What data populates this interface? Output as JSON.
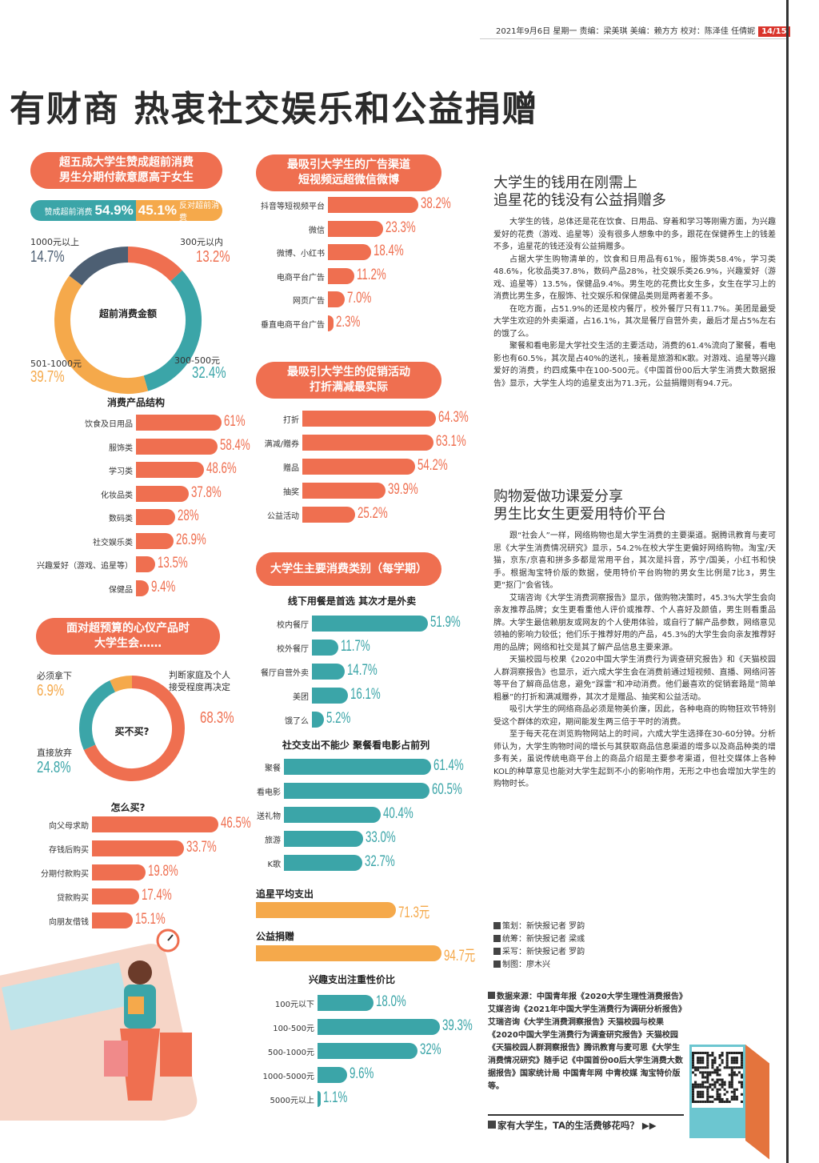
{
  "header": {
    "date_line": "2021年9月6日 星期一  责编：梁美琪  美编：赖方方  校对：陈泽佳 任倩妮",
    "page_number": "14/15"
  },
  "headline": "有财商  热衷社交娱乐和公益捐赠",
  "colors": {
    "coral": "#ef6f50",
    "teal": "#3ba5a8",
    "orange": "#f5a94b",
    "slate": "#4d5f73"
  },
  "panel1": {
    "title_lines": [
      "超五成大学生赞成超前消费",
      "男生分期付款意愿高于女生"
    ],
    "agree_label": "赞成超前消费",
    "agree_value": "54.9%",
    "oppose_label": "反对超前消费",
    "oppose_value": "45.1%"
  },
  "chart_data": [
    {
      "id": "advance_amount",
      "type": "pie",
      "title": "超前消费金额",
      "categories": [
        "300元以内",
        "300-500元",
        "501-1000元",
        "1000元以上"
      ],
      "values": [
        13.2,
        32.4,
        39.7,
        14.7
      ],
      "labels": [
        "13.2%",
        "32.4%",
        "39.7%",
        "14.7%"
      ],
      "colors": [
        "#ef6f50",
        "#3ba5a8",
        "#f5a94b",
        "#4d5f73"
      ]
    },
    {
      "id": "product_structure",
      "type": "bar",
      "title": "消费产品结构",
      "categories": [
        "饮食及日用品",
        "服饰类",
        "学习类",
        "化妆品类",
        "数码类",
        "社交娱乐类",
        "兴趣爱好（游戏、追星等）",
        "保健品"
      ],
      "values": [
        61,
        58.4,
        48.6,
        37.8,
        28,
        26.9,
        13.5,
        9.4
      ],
      "labels": [
        "61%",
        "58.4%",
        "48.6%",
        "37.8%",
        "28%",
        "26.9%",
        "13.5%",
        "9.4%"
      ],
      "unit": "%",
      "color": "#ef6f50"
    },
    {
      "id": "over_budget",
      "type": "pie",
      "title": "买不买?",
      "categories": [
        "判断家庭及个人接受程度再决定",
        "直接放弃",
        "必须拿下"
      ],
      "values": [
        68.3,
        24.8,
        6.9
      ],
      "labels": [
        "68.3%",
        "24.8%",
        "6.9%"
      ],
      "colors": [
        "#ef6f50",
        "#3ba5a8",
        "#f5a94b"
      ]
    },
    {
      "id": "how_to_buy",
      "type": "bar",
      "title": "怎么买?",
      "categories": [
        "向父母求助",
        "存钱后购买",
        "分期付款购买",
        "贷款购买",
        "向朋友借钱"
      ],
      "values": [
        46.5,
        33.7,
        19.8,
        17.4,
        15.1
      ],
      "labels": [
        "46.5%",
        "33.7%",
        "19.8%",
        "17.4%",
        "15.1%"
      ],
      "unit": "%",
      "color": "#ef6f50"
    },
    {
      "id": "ad_channels",
      "type": "bar",
      "title": "最吸引大学生的广告渠道 短视频远超微信微博",
      "categories": [
        "抖音等短视频平台",
        "微信",
        "微博、小红书",
        "电商平台广告",
        "网页广告",
        "垂直电商平台广告"
      ],
      "values": [
        38.2,
        23.3,
        18.4,
        11.2,
        7.0,
        2.3
      ],
      "labels": [
        "38.2%",
        "23.3%",
        "18.4%",
        "11.2%",
        "7.0%",
        "2.3%"
      ],
      "unit": "%",
      "color": "#ef6f50"
    },
    {
      "id": "promotions",
      "type": "bar",
      "title": "最吸引大学生的促销活动 打折满减最实际",
      "categories": [
        "打折",
        "满减/赠券",
        "赠品",
        "抽奖",
        "公益活动"
      ],
      "values": [
        64.3,
        63.1,
        54.2,
        39.9,
        25.2
      ],
      "labels": [
        "64.3%",
        "63.1%",
        "54.2%",
        "39.9%",
        "25.2%"
      ],
      "unit": "%",
      "color": "#ef6f50"
    },
    {
      "id": "dining",
      "type": "bar",
      "title": "线下用餐是首选 其次才是外卖",
      "categories": [
        "校内餐厅",
        "校外餐厅",
        "餐厅自营外卖",
        "美团",
        "饿了么"
      ],
      "values": [
        51.9,
        11.7,
        14.7,
        16.1,
        5.2
      ],
      "labels": [
        "51.9%",
        "11.7%",
        "14.7%",
        "16.1%",
        "5.2%"
      ],
      "unit": "%",
      "color": "#3ba5a8"
    },
    {
      "id": "social",
      "type": "bar",
      "title": "社交支出不能少 聚餐看电影占前列",
      "categories": [
        "聚餐",
        "看电影",
        "送礼物",
        "旅游",
        "K歌"
      ],
      "values": [
        61.4,
        60.5,
        40.4,
        33.0,
        32.7
      ],
      "labels": [
        "61.4%",
        "60.5%",
        "40.4%",
        "33.0%",
        "32.7%"
      ],
      "unit": "%",
      "color": "#3ba5a8"
    },
    {
      "id": "fan_avg",
      "type": "bar",
      "title": "追星平均支出",
      "categories": [
        "追星平均支出"
      ],
      "values": [
        71.3
      ],
      "labels": [
        "71.3"
      ],
      "unit": "元",
      "color": "#f5a94b"
    },
    {
      "id": "charity",
      "type": "bar",
      "title": "公益捐赠",
      "categories": [
        "公益捐赠"
      ],
      "values": [
        94.7
      ],
      "labels": [
        "94.7"
      ],
      "unit": "元",
      "color": "#f5a94b"
    },
    {
      "id": "hobby_spending",
      "type": "bar",
      "title": "兴趣支出注重性价比",
      "categories": [
        "100元以下",
        "100-500元",
        "500-1000元",
        "1000-5000元",
        "5000元以上"
      ],
      "values": [
        18.0,
        39.3,
        32,
        9.6,
        1.1
      ],
      "labels": [
        "18.0%",
        "39.3%",
        "32%",
        "9.6%",
        "1.1%"
      ],
      "unit": "%",
      "color": "#3ba5a8"
    }
  ],
  "panels": {
    "over_budget_title": [
      "面对超预算的心仪产品时",
      "大学生会……"
    ],
    "main_categories_title": "大学生主要消费类别（每学期）"
  },
  "article1": {
    "title_lines": [
      "大学生的钱用在刚需上",
      "追星花的钱没有公益捐赠多"
    ],
    "paragraphs": [
      "大学生的钱，总体还是花在饮食、日用品、穿着和学习等刚需方面，为兴趣爱好的花费（游戏、追星等）没有很多人想象中的多，跟花在保健养生上的钱差不多，追星花的钱还没有公益捐赠多。",
      "占据大学生购物清单的，饮食和日用品有61%，服饰类58.4%，学习类48.6%，化妆品类37.8%，数码产品28%，社交娱乐类26.9%，兴趣爱好（游戏、追星等）13.5%，保健品9.4%。男生吃的花费比女生多，女生在学习上的消费比男生多，在服饰、社交娱乐和保健品类则是两者差不多。",
      "在吃方面，占51.9%的还是校内餐厅，校外餐厅只有11.7%。美团是最受大学生欢迎的外卖渠道，占16.1%，其次是餐厅自营外卖，最后才是占5%左右的饿了么。",
      "聚餐和看电影是大学社交生活的主要活动，消费的61.4%流向了聚餐，看电影也有60.5%，其次是占40%的送礼，接着是旅游和K歌。对游戏、追星等兴趣爱好的消费，约四成集中在100-500元。《中国首份00后大学生消费大数据报告》显示，大学生人均的追星支出为71.3元，公益捐赠则有94.7元。"
    ]
  },
  "article2": {
    "title_lines": [
      "购物爱做功课爱分享",
      "男生比女生更爱用特价平台"
    ],
    "paragraphs": [
      "跟“社会人”一样，网络购物也是大学生消费的主要渠道。据腾讯教育与麦可思《大学生消费情况研究》显示，54.2%在校大学生更偏好网络购物。淘宝/天猫，京东/京喜和拼多多都是常用平台，其次是抖音，苏宁/国美，小红书和快手。根据淘宝特价版的数据，使用特价平台购物的男女生比例是7比3，男生更“抠门”会省钱。",
      "艾瑞咨询《大学生消费洞察报告》显示，做购物决策时，45.3%大学生会向亲友推荐品牌；女生更看重他人评价或推荐、个人喜好及颜值，男生则看重品牌。大学生最信赖朋友或网友的个人使用体验，或自行了解产品参数，网络意见领袖的影响力较低；他们乐于推荐好用的产品，45.3%的大学生会向亲友推荐好用的品牌；网络和社交是其了解产品信息主要来源。",
      "天猫校园与校果《2020中国大学生消费行为调查研究报告》和《天猫校园人群洞察报告》也显示，近六成大学生会在消费前通过短视频、直播、网络问答等平台了解商品信息，避免“踩雷”和冲动消费。他们最喜欢的促销套路是“简单粗暴”的打折和满减赠券，其次才是赠品、抽奖和公益活动。",
      "吸引大学生的网络商品必须是物美价廉，因此，各种电商的购物狂欢节特别受这个群体的欢迎，期间能发生两三倍于平时的消费。",
      "至于每天花在浏览购物网站上的时间，六成大学生选择在30-60分钟。分析师认为，大学生购物时间的增长与其获取商品信息渠道的增多以及商品种类的增多有关，虽说传统电商平台上的商品介绍是主要参考渠道，但社交媒体上各种KOL的种草意见也能对大学生起到不小的影响作用，无形之中也会增加大学生的购物时长。"
    ]
  },
  "credits": [
    "策划：新快报记者  罗韵",
    "统筹：新快报记者  梁彧",
    "采写：新快报记者  罗韵",
    "制图：廖木兴"
  ],
  "source": "数据来源：中国青年报《2020大学生理性消费报告》艾媒咨询《2021年中国大学生消费行为调研分析报告》艾瑞咨询《大学生消费洞察报告》天猫校园与校果《2020中国大学生消费行为调查研究报告》天猫校园《天猫校园人群洞察报告》腾讯教育与麦可思《大学生消费情况研究》随手记《中国首份00后大学生消费大数据报告》国家统计局 中国青年网 中青校媒 淘宝特价版等。",
  "more_link": "家有大学生，TA的生活费够花吗？ ▶▶",
  "icons": {
    "qr": "qr-code-icon",
    "clock": "clock-icon",
    "calculator": "calculator-illustration"
  }
}
